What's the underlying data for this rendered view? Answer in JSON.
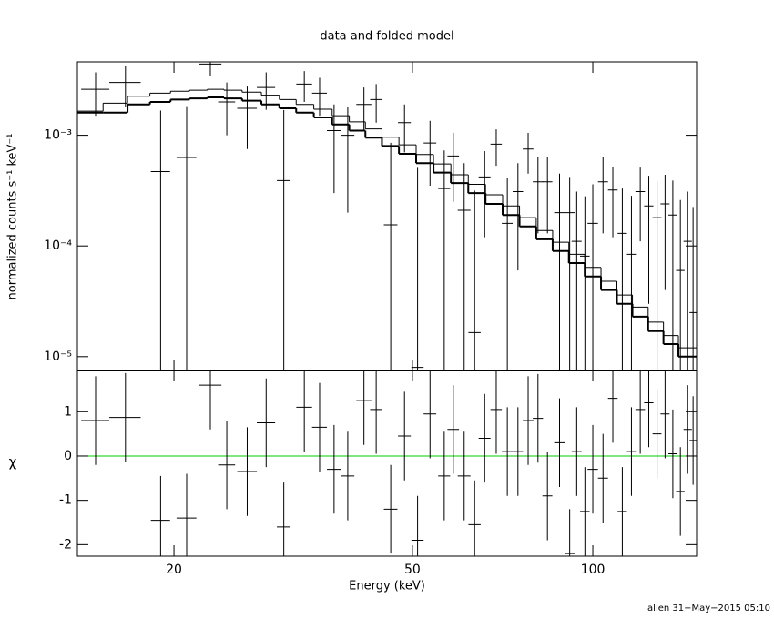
{
  "footer": "allen 31−May−2015 05:10",
  "chart_data": [
    {
      "type": "errorbar",
      "title": "data and folded model",
      "ylabel": "normalized counts s⁻¹ keV⁻¹",
      "xlog": true,
      "ylog": true,
      "xlim": [
        13.8,
        149
      ],
      "ylim": [
        7.5e-06,
        0.0046
      ],
      "yticks": [
        {
          "value": 1e-05,
          "label": "10⁻⁵"
        },
        {
          "value": 0.0001,
          "label": "10⁻⁴"
        },
        {
          "value": 0.001,
          "label": "10⁻³"
        }
      ],
      "x": [
        14.8,
        16.6,
        19,
        21,
        23,
        24.5,
        26.5,
        28.5,
        30.5,
        33,
        35,
        37,
        39,
        41.5,
        43.5,
        46,
        48.5,
        51,
        53.5,
        56.5,
        58.5,
        61,
        63.5,
        66,
        69,
        72,
        75,
        78,
        81,
        84,
        88,
        91.5,
        94,
        97,
        100,
        104,
        108,
        112,
        116,
        120,
        124,
        128,
        132,
        136,
        140,
        144,
        147
      ],
      "x_err": [
        0.8,
        1.0,
        0.7,
        0.8,
        1.0,
        0.8,
        1.0,
        1.0,
        0.8,
        1.0,
        1.0,
        1.0,
        1.0,
        1.2,
        1.0,
        1.2,
        1.2,
        1.2,
        1.3,
        1.3,
        1.3,
        1.5,
        1.5,
        1.5,
        1.5,
        1.5,
        1.5,
        1.6,
        1.6,
        1.6,
        1.8,
        1.8,
        1.8,
        1.8,
        2,
        2,
        2,
        2,
        2,
        2.2,
        2.2,
        2.2,
        2.3,
        2.3,
        2.3,
        2.3,
        2.0
      ],
      "series": [
        {
          "color": "#000000",
          "values": [
            0.0026,
            0.003,
            0.00047,
            0.00063,
            0.0044,
            0.002,
            0.00175,
            0.0027,
            0.00039,
            0.0029,
            0.0024,
            0.0011,
            0.001,
            0.0019,
            0.0021,
            0.000155,
            0.0013,
            8e-06,
            0.00085,
            0.00033,
            0.00065,
            0.00021,
            1.65e-05,
            0.00042,
            0.00083,
            0.00016,
            0.00031,
            0.00075,
            0.00038,
            0.00038,
            0.0002,
            0.0002,
            0.00011,
            8.1e-05,
            0.00016,
            0.00038,
            0.00032,
            0.00013,
            8.4e-05,
            0.00031,
            0.00023,
            0.00018,
            0.00024,
            0.00019,
            6e-05,
            0.00011,
            2.5e-05
          ],
          "errors": [
            0.0011,
            0.0012,
            0.0012,
            0.0012,
            0.001,
            0.001,
            0.001,
            0.001,
            0.0013,
            0.0009,
            0.0009,
            0.0008,
            0.0008,
            0.0008,
            0.0008,
            0.0007,
            0.0006,
            0.0005,
            0.0005,
            0.0004,
            0.0004,
            0.00035,
            0.0003,
            0.0003,
            0.0003,
            0.00025,
            0.00025,
            0.0003,
            0.00025,
            0.00025,
            0.00025,
            0.00022,
            0.0002,
            0.0002,
            0.0002,
            0.00025,
            0.0002,
            0.0002,
            0.0002,
            0.0002,
            0.0002,
            0.0002,
            0.0002,
            0.0002,
            0.0002,
            0.0002,
            0.0002
          ]
        }
      ],
      "model_x": [
        14.5,
        16,
        17.5,
        19,
        20.5,
        22,
        23.5,
        25,
        27,
        29,
        31,
        33,
        35.5,
        38,
        40.5,
        43,
        46,
        49,
        52.5,
        56,
        60,
        64,
        68.5,
        73,
        78,
        83,
        88.5,
        94,
        100,
        106.5,
        113,
        120,
        127.5,
        135,
        143
      ],
      "models": [
        {
          "color": "#000000",
          "width": 2,
          "values": [
            0.0016,
            0.0016,
            0.0019,
            0.002,
            0.0021,
            0.00215,
            0.0022,
            0.00215,
            0.00205,
            0.0019,
            0.00175,
            0.0016,
            0.00145,
            0.00125,
            0.0011,
            0.00095,
            0.0008,
            0.00068,
            0.00056,
            0.00046,
            0.00037,
            0.0003,
            0.00024,
            0.00019,
            0.00015,
            0.000115,
            9e-05,
            7e-05,
            5.3e-05,
            4e-05,
            3e-05,
            2.3e-05,
            1.7e-05,
            1.3e-05,
            1e-05
          ]
        },
        {
          "color": "#000000",
          "width": 1,
          "values": [
            0.00165,
            0.00195,
            0.00225,
            0.0024,
            0.0025,
            0.00255,
            0.0026,
            0.00255,
            0.00245,
            0.0023,
            0.0021,
            0.0019,
            0.00172,
            0.0015,
            0.00132,
            0.00114,
            0.00096,
            0.00082,
            0.00067,
            0.00055,
            0.00044,
            0.00036,
            0.00029,
            0.00023,
            0.00018,
            0.000138,
            0.000108,
            8.4e-05,
            6.4e-05,
            4.8e-05,
            3.6e-05,
            2.8e-05,
            2.05e-05,
            1.55e-05,
            1.2e-05
          ]
        }
      ]
    },
    {
      "type": "errorbar",
      "ylabel": "χ",
      "xlabel": "Energy (keV)",
      "xlog": true,
      "xlim": [
        13.8,
        149
      ],
      "ylim": [
        -2.26,
        1.93
      ],
      "xticks": [
        20,
        50,
        100
      ],
      "yticks": [
        -2,
        -1,
        0,
        1
      ],
      "reference": {
        "value": 0,
        "color": "#00cc00"
      },
      "x": [
        14.8,
        16.6,
        19,
        21,
        23,
        24.5,
        26.5,
        28.5,
        30.5,
        33,
        35,
        37,
        39,
        41.5,
        43.5,
        46,
        48.5,
        51,
        53.5,
        56.5,
        58.5,
        61,
        63.5,
        66,
        69,
        72,
        75,
        78,
        81,
        84,
        88,
        91.5,
        94,
        97,
        100,
        104,
        108,
        112,
        116,
        120,
        124,
        128,
        132,
        136,
        140,
        144,
        147
      ],
      "x_err": [
        0.8,
        1.0,
        0.7,
        0.8,
        1.0,
        0.8,
        1.0,
        1.0,
        0.8,
        1.0,
        1.0,
        1.0,
        1.0,
        1.2,
        1.0,
        1.2,
        1.2,
        1.2,
        1.3,
        1.3,
        1.3,
        1.5,
        1.5,
        1.5,
        1.5,
        1.5,
        1.5,
        1.6,
        1.6,
        1.6,
        1.8,
        1.8,
        1.8,
        1.8,
        2,
        2,
        2,
        2,
        2,
        2.2,
        2.2,
        2.2,
        2.3,
        2.3,
        2.3,
        2.3,
        2.0
      ],
      "series": [
        {
          "color": "#000000",
          "values": [
            0.8,
            0.87,
            -1.45,
            -1.4,
            1.6,
            -0.2,
            -0.35,
            0.75,
            -1.6,
            1.1,
            0.65,
            -0.3,
            -0.45,
            1.25,
            1.05,
            -1.2,
            0.45,
            -1.9,
            0.95,
            -0.45,
            0.6,
            -0.45,
            -1.55,
            0.4,
            1.05,
            0.1,
            0.1,
            0.8,
            0.85,
            -0.9,
            0.3,
            -2.2,
            0.1,
            -1.25,
            -0.3,
            -0.5,
            1.3,
            -1.25,
            0.1,
            1.05,
            1.2,
            0.5,
            0.95,
            0.05,
            -0.8,
            0.6,
            0.35
          ],
          "errors": [
            1,
            1,
            1,
            1,
            1,
            1,
            1,
            1,
            1,
            1,
            1,
            1,
            1,
            1,
            1,
            1,
            1,
            1,
            1,
            1,
            1,
            1,
            1,
            1,
            1,
            1,
            1,
            1,
            1,
            1,
            1,
            1,
            1,
            1,
            1,
            1,
            1,
            1,
            1,
            1,
            1,
            1,
            1,
            1,
            1,
            1,
            1
          ]
        }
      ]
    }
  ]
}
